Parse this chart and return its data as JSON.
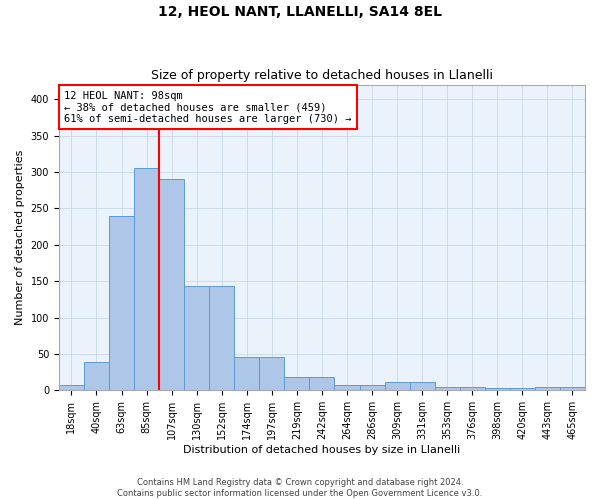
{
  "title1": "12, HEOL NANT, LLANELLI, SA14 8EL",
  "title2": "Size of property relative to detached houses in Llanelli",
  "xlabel": "Distribution of detached houses by size in Llanelli",
  "ylabel": "Number of detached properties",
  "categories": [
    "18sqm",
    "40sqm",
    "63sqm",
    "85sqm",
    "107sqm",
    "130sqm",
    "152sqm",
    "174sqm",
    "197sqm",
    "219sqm",
    "242sqm",
    "264sqm",
    "286sqm",
    "309sqm",
    "331sqm",
    "353sqm",
    "376sqm",
    "398sqm",
    "420sqm",
    "443sqm",
    "465sqm"
  ],
  "values": [
    8,
    39,
    240,
    305,
    290,
    143,
    143,
    46,
    46,
    19,
    19,
    8,
    8,
    11,
    11,
    5,
    5,
    3,
    3,
    4,
    4
  ],
  "bar_color": "#aec6e8",
  "bar_edge_color": "#5b9bd5",
  "red_line_x": 3.5,
  "annotation_text": "12 HEOL NANT: 98sqm\n← 38% of detached houses are smaller (459)\n61% of semi-detached houses are larger (730) →",
  "annotation_box_color": "white",
  "annotation_box_edge_color": "red",
  "ylim": [
    0,
    420
  ],
  "yticks": [
    0,
    50,
    100,
    150,
    200,
    250,
    300,
    350,
    400
  ],
  "grid_color": "#c8d8e8",
  "bg_color": "#eaf2fb",
  "footer": "Contains HM Land Registry data © Crown copyright and database right 2024.\nContains public sector information licensed under the Open Government Licence v3.0.",
  "title1_fontsize": 10,
  "title2_fontsize": 9,
  "xlabel_fontsize": 8,
  "ylabel_fontsize": 8,
  "tick_fontsize": 7,
  "annotation_fontsize": 7.5,
  "footer_fontsize": 6
}
